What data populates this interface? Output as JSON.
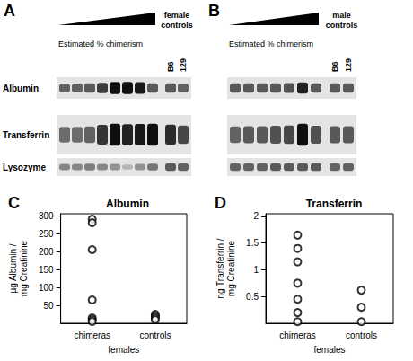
{
  "blot_rows": [
    "Albumin",
    "Transferrin",
    "Lysozyme"
  ],
  "blots": [
    {
      "panel": "A",
      "wedge_label": "Estimated % chimerism",
      "controls_label": "female controls",
      "control_lanes": [
        "B6",
        "129"
      ]
    },
    {
      "panel": "B",
      "wedge_label": "Estimated % chimerism",
      "controls_label": "male controls",
      "control_lanes": [
        "B6",
        "129"
      ]
    }
  ],
  "chart_data": [
    {
      "type": "scatter",
      "panel": "C",
      "title": "Albumin",
      "categories": [
        "chimeras",
        "controls"
      ],
      "values": [
        [
          290,
          280,
          205,
          65,
          15,
          10,
          5
        ],
        [
          25,
          20,
          15,
          10
        ]
      ],
      "xlabel": "females",
      "ylabel": "µg Albumin / mg Creatinine",
      "ylim": [
        0,
        305
      ],
      "yticks": [
        50,
        100,
        150,
        200,
        250,
        300
      ],
      "marker": "open_circle",
      "color": "#000000",
      "grid": false
    },
    {
      "type": "scatter",
      "panel": "D",
      "title": "Transferrin",
      "categories": [
        "chimeras",
        "controls"
      ],
      "values": [
        [
          1.65,
          1.4,
          1.15,
          0.75,
          0.45,
          0.2,
          0.03
        ],
        [
          0.62,
          0.3,
          0.03
        ]
      ],
      "xlabel": "females",
      "ylabel": "ng Transferrin / mg Creatinine",
      "ylim": [
        0,
        2.05
      ],
      "yticks": [
        0.5,
        1,
        1.5,
        2
      ],
      "marker": "open_circle",
      "color": "#000000",
      "grid": false
    }
  ]
}
